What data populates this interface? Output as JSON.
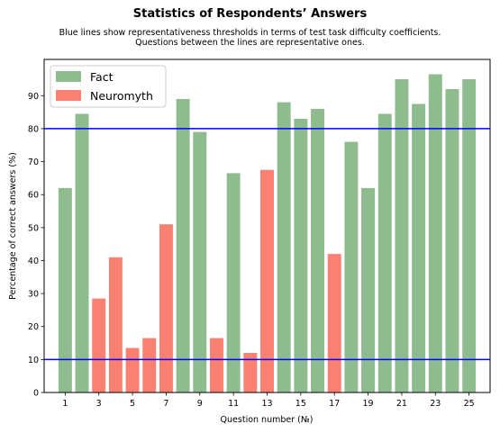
{
  "chart_data": {
    "type": "bar",
    "title": "Statistics of Respondents’ Answers",
    "subtitle_lines": [
      "Blue lines show representativeness thresholds in terms of test task difficulty coefficients.",
      "Questions between the lines are representative ones."
    ],
    "xlabel": "Question number (№)",
    "ylabel": "Percentage of correct answers (%)",
    "ylim": [
      0,
      101
    ],
    "yticks": [
      0,
      10,
      20,
      30,
      40,
      50,
      60,
      70,
      80,
      90
    ],
    "xticks": [
      1,
      3,
      5,
      7,
      9,
      11,
      13,
      15,
      17,
      19,
      21,
      23,
      25
    ],
    "categories": [
      1,
      2,
      3,
      4,
      5,
      6,
      7,
      8,
      9,
      10,
      11,
      12,
      13,
      14,
      15,
      16,
      17,
      18,
      19,
      20,
      21,
      22,
      23,
      24,
      25
    ],
    "values": [
      62,
      84.5,
      28.5,
      41,
      13.5,
      16.5,
      51,
      89,
      79,
      16.5,
      66.5,
      12,
      67.5,
      88,
      83,
      86,
      42,
      76,
      62,
      84.5,
      95,
      87.5,
      96.5,
      92,
      95
    ],
    "types": [
      "Fact",
      "Fact",
      "Neuromyth",
      "Neuromyth",
      "Neuromyth",
      "Neuromyth",
      "Neuromyth",
      "Fact",
      "Fact",
      "Neuromyth",
      "Fact",
      "Neuromyth",
      "Neuromyth",
      "Fact",
      "Fact",
      "Fact",
      "Neuromyth",
      "Fact",
      "Fact",
      "Fact",
      "Fact",
      "Fact",
      "Fact",
      "Fact",
      "Fact"
    ],
    "legend": [
      {
        "name": "Fact",
        "color": "#8fbc8f"
      },
      {
        "name": "Neuromyth",
        "color": "#fa8072"
      }
    ],
    "legend_position": "top-left",
    "threshold_lines": [
      10,
      80
    ],
    "threshold_color": "#0000ff",
    "grid": false
  }
}
